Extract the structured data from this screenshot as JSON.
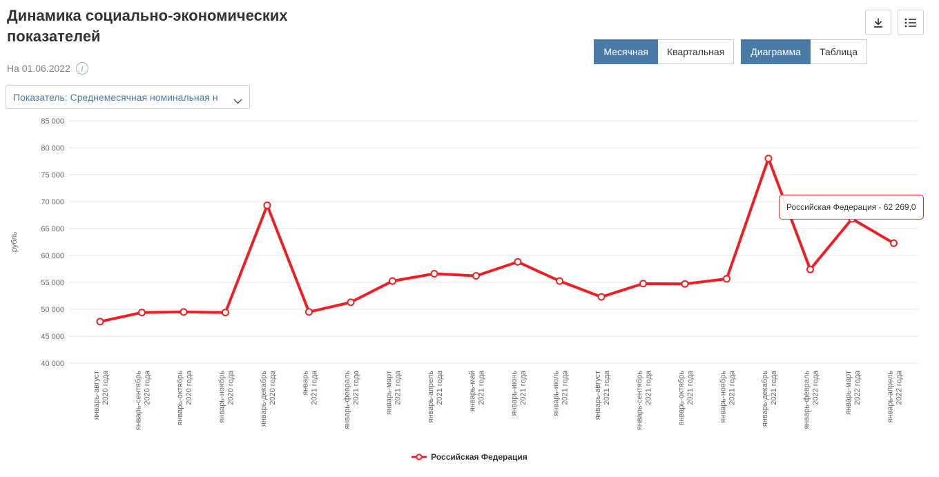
{
  "header": {
    "title": "Динамика социально-экономических показателей",
    "date_label": "На 01.06.2022",
    "info_icon": "i"
  },
  "toolbar": {
    "icons": [
      {
        "name": "download-icon"
      },
      {
        "name": "menu-icon"
      }
    ],
    "period_tabs": [
      {
        "label": "Месячная",
        "active": true
      },
      {
        "label": "Квартальная",
        "active": false
      }
    ],
    "view_tabs": [
      {
        "label": "Диаграмма",
        "active": true
      },
      {
        "label": "Таблица",
        "active": false
      }
    ]
  },
  "filter": {
    "indicator_value": "Показатель: Среднемесячная номинальная н"
  },
  "colors": {
    "accent_blue": "#4a7ba6",
    "series_red": "#ed1f24",
    "grid": "#e6e6e6"
  },
  "chart_data": {
    "type": "line",
    "title": "",
    "xlabel": "",
    "ylabel": "рубль",
    "ylim": [
      40000,
      85000
    ],
    "ytick_step": 5000,
    "ytick_labels": [
      "40 000",
      "45 000",
      "50 000",
      "55 000",
      "60 000",
      "65 000",
      "70 000",
      "75 000",
      "80 000",
      "85 000"
    ],
    "grid": true,
    "legend_position": "bottom",
    "categories": [
      "январь-август 2020 года",
      "январь-сентябрь 2020 года",
      "январь-октябрь 2020 года",
      "январь-ноябрь 2020 года",
      "январь-декабрь 2020 года",
      "январь 2021 года",
      "январь-февраль 2021 года",
      "январь-март 2021 года",
      "январь-апрель 2021 года",
      "январь-май 2021 года",
      "январь-июнь 2021 года",
      "январь-июль 2021 года",
      "январь-август 2021 года",
      "январь-сентябрь 2021 года",
      "январь-октябрь 2021 года",
      "январь-ноябрь 2021 года",
      "январь-декабрь 2021 года",
      "январь-февраль 2022 года",
      "январь-март 2022 года",
      "январь-апрель 2022 года"
    ],
    "series": [
      {
        "name": "Российская Федерация",
        "color": "#ed1f24",
        "values": [
          47700,
          49400,
          49500,
          49400,
          69300,
          49500,
          51300,
          55250,
          56600,
          56200,
          58800,
          55250,
          52300,
          54750,
          54700,
          55650,
          78000,
          57400,
          66800,
          62269
        ]
      }
    ],
    "tooltip": {
      "text": "Российская Федерация - 62 269,0",
      "point_index": 19
    }
  }
}
